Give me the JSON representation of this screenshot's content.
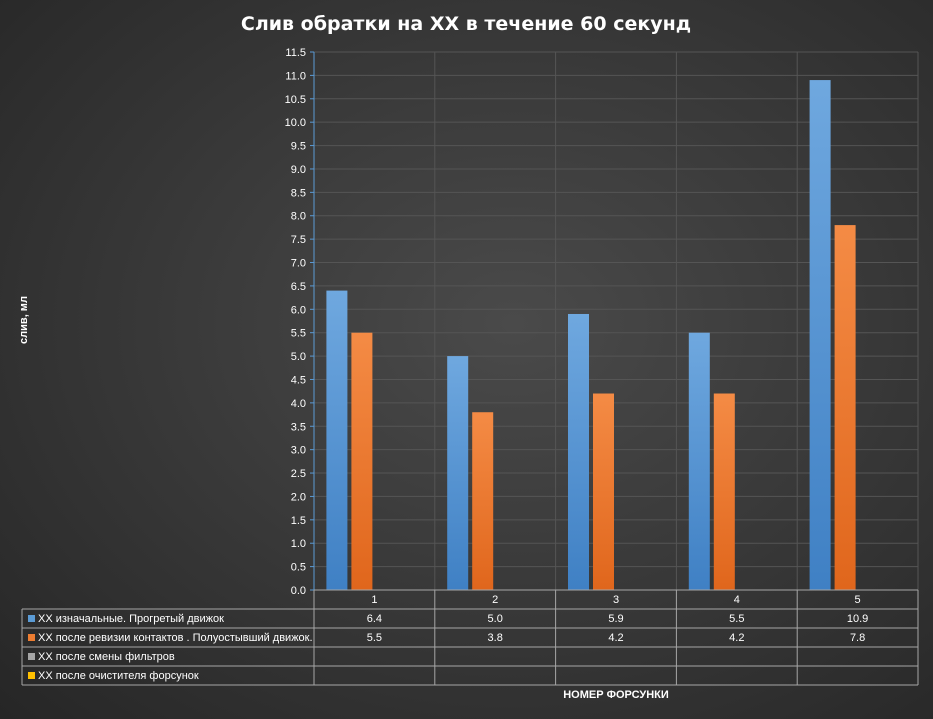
{
  "chart_data": {
    "type": "bar",
    "title": "Слив  обратки  на ХХ в течение  60 секунд",
    "ylabel": "слив, мл",
    "xlabel": "НОМЕР ФОРСУНКИ",
    "categories": [
      "1",
      "2",
      "3",
      "4",
      "5"
    ],
    "ylim": [
      0,
      11.5
    ],
    "ytick_step": 0.5,
    "grid": true,
    "legend_position": "bottom (data table)",
    "series": [
      {
        "name": "ХХ изначальные. Прогретый движок",
        "color": "#5b9bd5",
        "values": [
          6.4,
          5.0,
          5.9,
          5.5,
          10.9
        ],
        "labels": [
          "6.4",
          "5.0",
          "5.9",
          "5.5",
          "10.9"
        ]
      },
      {
        "name": "ХХ после ревизии контактов . Полуостывший движок.",
        "color": "#ed7d31",
        "values": [
          5.5,
          3.8,
          4.2,
          4.2,
          7.8
        ],
        "labels": [
          "5.5",
          "3.8",
          "4.2",
          "4.2",
          "7.8"
        ]
      },
      {
        "name": "ХХ после смены фильтров",
        "color": "#a5a5a5",
        "values": [
          null,
          null,
          null,
          null,
          null
        ],
        "labels": [
          "",
          "",
          "",
          "",
          ""
        ]
      },
      {
        "name": "ХХ после очистителя форсунок",
        "color": "#ffc000",
        "values": [
          null,
          null,
          null,
          null,
          null
        ],
        "labels": [
          "",
          "",
          "",
          "",
          ""
        ]
      }
    ]
  }
}
